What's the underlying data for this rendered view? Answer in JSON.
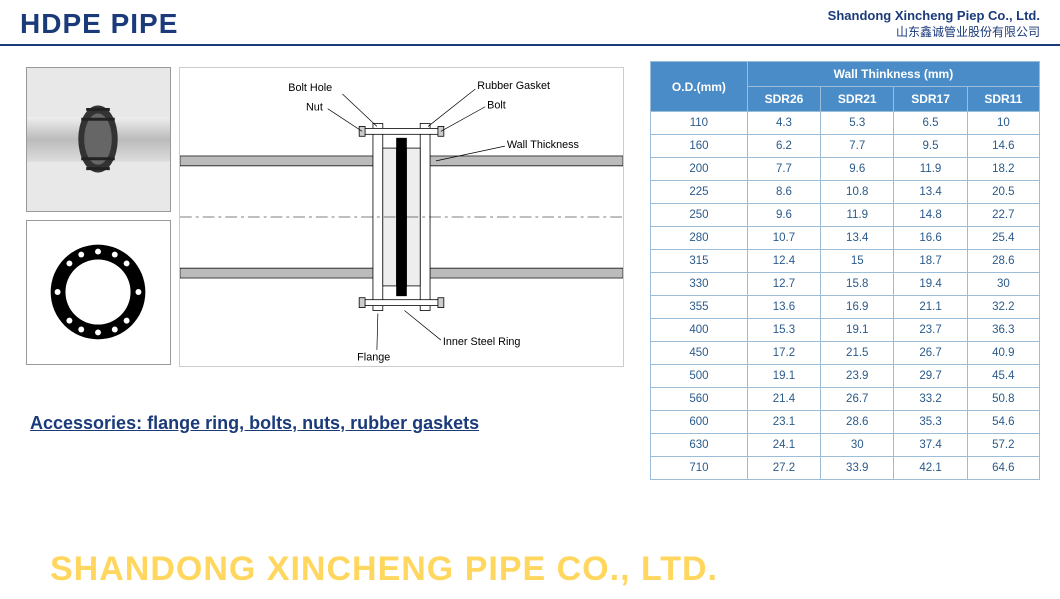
{
  "header": {
    "title": "HDPE PIPE",
    "company_en": "Shandong Xincheng Piep Co., Ltd.",
    "company_cn": "山东鑫诚管业股份有限公司"
  },
  "diagram": {
    "labels": {
      "bolt_hole": "Bolt Hole",
      "nut": "Nut",
      "rubber_gasket": "Rubber Gasket",
      "bolt": "Bolt",
      "wall_thickness": "Wall Thickness",
      "inner_steel_ring": "Inner Steel Ring",
      "flange": "Flange"
    },
    "colors": {
      "line": "#000000",
      "pipe_fill": "#dcdcdc",
      "pipe_hatch": "#888888",
      "gasket_ring": "#000000",
      "background": "#ffffff"
    }
  },
  "accessories_text": "Accessories: flange ring, bolts, nuts, rubber gaskets",
  "table": {
    "header_od": "O.D.(mm)",
    "header_wall": "Wall Thinkness (mm)",
    "cols": [
      "SDR26",
      "SDR21",
      "SDR17",
      "SDR11"
    ],
    "rows": [
      {
        "od": "110",
        "v": [
          "4.3",
          "5.3",
          "6.5",
          "10"
        ]
      },
      {
        "od": "160",
        "v": [
          "6.2",
          "7.7",
          "9.5",
          "14.6"
        ]
      },
      {
        "od": "200",
        "v": [
          "7.7",
          "9.6",
          "11.9",
          "18.2"
        ]
      },
      {
        "od": "225",
        "v": [
          "8.6",
          "10.8",
          "13.4",
          "20.5"
        ]
      },
      {
        "od": "250",
        "v": [
          "9.6",
          "11.9",
          "14.8",
          "22.7"
        ]
      },
      {
        "od": "280",
        "v": [
          "10.7",
          "13.4",
          "16.6",
          "25.4"
        ]
      },
      {
        "od": "315",
        "v": [
          "12.4",
          "15",
          "18.7",
          "28.6"
        ]
      },
      {
        "od": "330",
        "v": [
          "12.7",
          "15.8",
          "19.4",
          "30"
        ]
      },
      {
        "od": "355",
        "v": [
          "13.6",
          "16.9",
          "21.1",
          "32.2"
        ]
      },
      {
        "od": "400",
        "v": [
          "15.3",
          "19.1",
          "23.7",
          "36.3"
        ]
      },
      {
        "od": "450",
        "v": [
          "17.2",
          "21.5",
          "26.7",
          "40.9"
        ]
      },
      {
        "od": "500",
        "v": [
          "19.1",
          "23.9",
          "29.7",
          "45.4"
        ]
      },
      {
        "od": "560",
        "v": [
          "21.4",
          "26.7",
          "33.2",
          "50.8"
        ]
      },
      {
        "od": "600",
        "v": [
          "23.1",
          "28.6",
          "35.3",
          "54.6"
        ]
      },
      {
        "od": "630",
        "v": [
          "24.1",
          "30",
          "37.4",
          "57.2"
        ]
      },
      {
        "od": "710",
        "v": [
          "27.2",
          "33.9",
          "42.1",
          "64.6"
        ]
      }
    ],
    "header_bg": "#4a8cc7",
    "header_fg": "#ffffff",
    "border_color": "#9bbdd8",
    "cell_fg": "#2a5a8a"
  },
  "watermark": "SHANDONG XINCHENG PIPE CO., LTD.",
  "colors": {
    "title": "#1a3a7a",
    "rule": "#1a3a7a",
    "watermark": "rgba(255,200,40,0.75)"
  }
}
